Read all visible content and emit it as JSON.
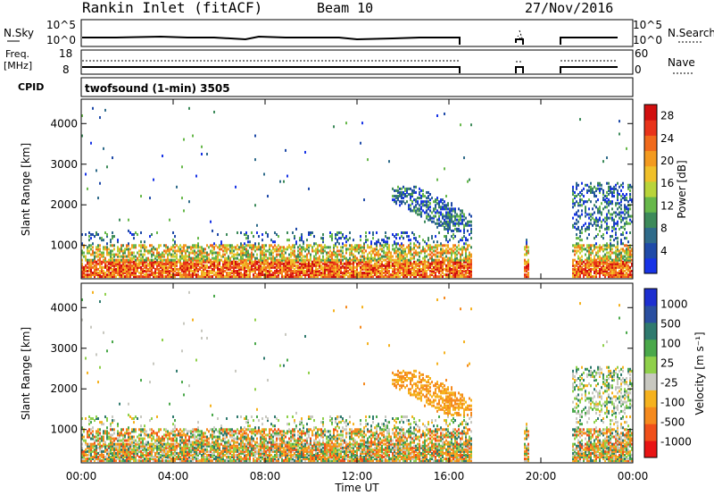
{
  "header": {
    "station": "Rankin Inlet (fitACF)",
    "beam": "Beam 10",
    "date": "27/Nov/2016"
  },
  "top_panels": {
    "nsky": {
      "left_label": "N.Sky",
      "right_label": "N.Search",
      "left_ticks": [
        "10^5",
        "10^0"
      ],
      "right_ticks": [
        "10^5",
        "10^0"
      ]
    },
    "freq": {
      "left_label_line1": "Freq.",
      "left_label_line2": "[MHz]",
      "right_label": "Nave",
      "left_ticks": [
        "18",
        "8"
      ],
      "right_ticks": [
        "60",
        "0"
      ]
    },
    "cpid": {
      "label": "CPID",
      "text": "twofsound (1-min) 3505"
    }
  },
  "colors": {
    "power_colorbar": [
      "#1733e6",
      "#1f4aa8",
      "#2f6b8a",
      "#3d8a5a",
      "#67b84a",
      "#b9d43a",
      "#f0c02a",
      "#f39a1f",
      "#f06a1c",
      "#e8331a",
      "#d10f0f"
    ],
    "velocity_colorbar": [
      "#e81414",
      "#f0501a",
      "#f58a1e",
      "#f5b21f",
      "#c8c8c0",
      "#8fd04a",
      "#4aa84a",
      "#2f7a6e",
      "#2a4fa0",
      "#1d2fd0"
    ]
  },
  "chart_data": [
    {
      "type": "heatmap",
      "name": "power",
      "ylabel": "Slant Range [km]",
      "yticks": [
        1000,
        2000,
        3000,
        4000
      ],
      "ylim": [
        180,
        4600
      ],
      "xlim_hours": [
        0,
        24
      ],
      "colorbar_label": "Power [dB]",
      "colorbar_ticks": [
        4,
        8,
        12,
        16,
        20,
        24,
        28
      ],
      "colorbar_range": [
        0,
        30
      ]
    },
    {
      "type": "heatmap",
      "name": "velocity",
      "ylabel": "Slant Range [km]",
      "yticks": [
        1000,
        2000,
        3000,
        4000
      ],
      "ylim": [
        180,
        4600
      ],
      "xlim_hours": [
        0,
        24
      ],
      "colorbar_label": "Velocity [m s⁻¹]",
      "colorbar_ticks": [
        "1000",
        "500",
        "100",
        "25",
        "-25",
        "-100",
        "-500",
        "-1000"
      ]
    }
  ],
  "x_axis": {
    "ticks": [
      "00:00",
      "04:00",
      "08:00",
      "12:00",
      "16:00",
      "20:00",
      "00:00"
    ],
    "label": "Time UT"
  }
}
